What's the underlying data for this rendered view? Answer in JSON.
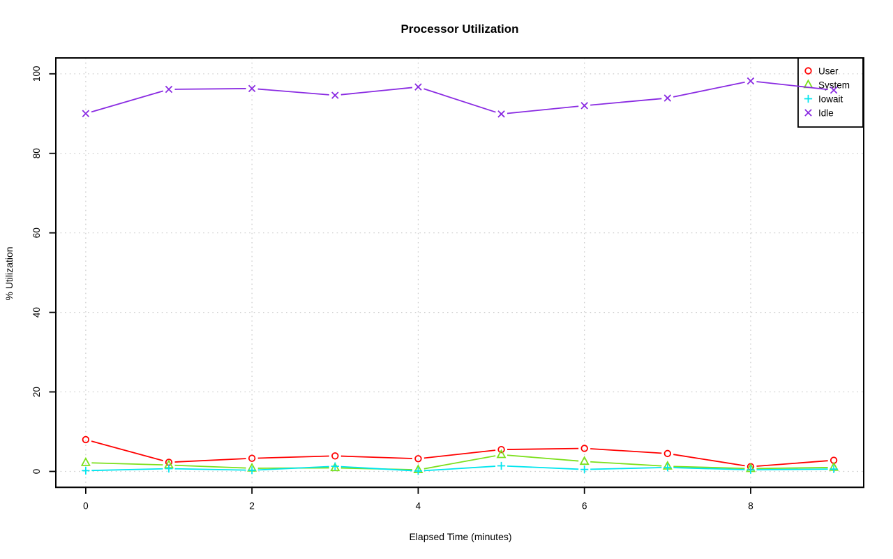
{
  "chart_data": {
    "type": "line",
    "title": "Processor Utilization",
    "xlabel": "Elapsed Time (minutes)",
    "ylabel": "% Utilization",
    "x": [
      0,
      1,
      2,
      3,
      4,
      5,
      6,
      7,
      8,
      9
    ],
    "xticks": [
      0,
      2,
      4,
      6,
      8
    ],
    "yticks": [
      0,
      20,
      40,
      60,
      80,
      100
    ],
    "xlim": [
      -0.36,
      9.36
    ],
    "ylim": [
      -4,
      104
    ],
    "grid": "dotted",
    "grid_color": "#c9c9c9",
    "frame_color": "#000000",
    "legend_position": "top-right",
    "series": [
      {
        "name": "User",
        "color": "#ff0000",
        "marker": "circle",
        "values": [
          8.0,
          2.3,
          3.3,
          3.9,
          3.2,
          5.5,
          5.8,
          4.5,
          1.2,
          2.8
        ]
      },
      {
        "name": "System",
        "color": "#7ce01c",
        "marker": "triangle",
        "values": [
          2.2,
          1.6,
          0.8,
          0.9,
          0.4,
          4.2,
          2.5,
          1.3,
          0.7,
          1.0
        ]
      },
      {
        "name": "Iowait",
        "color": "#00e5ee",
        "marker": "plus",
        "values": [
          0.2,
          0.7,
          0.3,
          1.3,
          0.1,
          1.4,
          0.5,
          1.0,
          0.4,
          0.6
        ]
      },
      {
        "name": "Idle",
        "color": "#8a2be2",
        "marker": "x",
        "values": [
          90.0,
          96.1,
          96.3,
          94.6,
          96.7,
          89.9,
          92.0,
          93.9,
          98.2,
          95.9
        ]
      }
    ]
  }
}
